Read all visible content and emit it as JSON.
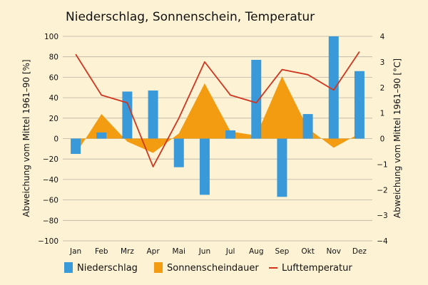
{
  "chart_data": {
    "type": "bar+area+line",
    "title": "Niederschlag, Sonnenschein, Temperatur",
    "categories": [
      "Jan",
      "Feb",
      "Mrz",
      "Apr",
      "Mai",
      "Jun",
      "Jul",
      "Aug",
      "Sep",
      "Okt",
      "Nov",
      "Dez"
    ],
    "ylabel_left": "Abweichung vom Mittel 1961–90 [%]",
    "ylabel_right": "Abweichung vom Mittel 1961–90 [°C]",
    "ylim_left": [
      -100,
      100
    ],
    "ylim_right": [
      -4,
      4
    ],
    "yticks_left": [
      "100",
      "80",
      "60",
      "40",
      "20",
      "0",
      "−20",
      "−40",
      "−60",
      "−80",
      "−100"
    ],
    "yticks_right": [
      "4",
      "3",
      "2",
      "1",
      "0",
      "−1",
      "−2",
      "−3",
      "−4"
    ],
    "grid": true,
    "legend_position": "bottom",
    "colors": {
      "niederschlag": "#3a9ad9",
      "sonnenschein": "#f39c12",
      "temperatur": "#d0351f",
      "grid": "#b9b2a4"
    },
    "series": [
      {
        "name": "Niederschlag",
        "axis": "left",
        "kind": "bar",
        "values": [
          -15,
          6,
          46,
          47,
          -28,
          -55,
          8,
          77,
          -57,
          24,
          100,
          66
        ]
      },
      {
        "name": "Sonnenscheindauer",
        "axis": "left",
        "kind": "area",
        "values": [
          -15,
          24,
          -3,
          -14,
          5,
          54,
          7,
          3,
          61,
          10,
          -9,
          5
        ]
      },
      {
        "name": "Lufttemperatur",
        "axis": "right",
        "kind": "line",
        "values": [
          3.3,
          1.7,
          1.4,
          -1.1,
          0.8,
          3.0,
          1.7,
          1.4,
          2.7,
          2.5,
          1.9,
          3.4
        ]
      }
    ]
  }
}
